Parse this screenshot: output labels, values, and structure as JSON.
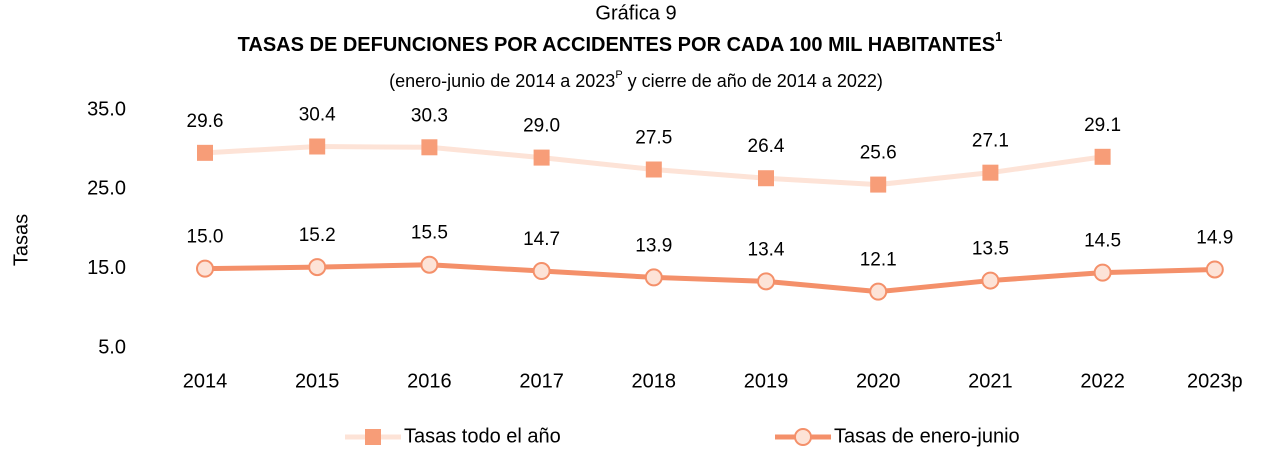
{
  "chart_data": {
    "type": "line",
    "label": "Gráfica 9",
    "title": "TASAS DE DEFUNCIONES POR ACCIDENTES POR CADA 100 MIL HABITANTES",
    "title_note": "1",
    "subtitle": "(enero-junio de 2014 a 2023",
    "subtitle_note": "P",
    "subtitle_end": "y cierre de año de 2014 a 2022)",
    "y_label": "Tasas",
    "categories": [
      "2014",
      "2015",
      "2016",
      "2017",
      "2018",
      "2019",
      "2020",
      "2021",
      "2022",
      "2023p"
    ],
    "series": [
      {
        "name": "Tasas todo el año",
        "color": "#fde3d7",
        "marker_color": "#f79d78",
        "marker": "square",
        "values": [
          29.6,
          30.4,
          30.3,
          29.0,
          27.5,
          26.4,
          25.6,
          27.1,
          29.1,
          null
        ],
        "value_labels": [
          "29.6",
          "30.4",
          "30.3",
          "29.0",
          "27.5",
          "26.4",
          "25.6",
          "27.1",
          "29.1",
          null
        ]
      },
      {
        "name": "Tasas de enero-junio",
        "color": "#f4906a",
        "marker_color": "#fde3d7",
        "marker": "circle",
        "values": [
          15.0,
          15.2,
          15.5,
          14.7,
          13.9,
          13.4,
          12.1,
          13.5,
          14.5,
          14.9
        ],
        "value_labels": [
          "15.0",
          "15.2",
          "15.5",
          "14.7",
          "13.9",
          "13.4",
          "12.1",
          "13.5",
          "14.5",
          "14.9"
        ]
      }
    ],
    "ylim": [
      5,
      35
    ],
    "yticks": [
      {
        "value": 5,
        "label": "5.0"
      },
      {
        "value": 15,
        "label": "15.0"
      },
      {
        "value": 25,
        "label": "25.0"
      },
      {
        "value": 35,
        "label": "35.0"
      }
    ],
    "legend": "bottom"
  }
}
